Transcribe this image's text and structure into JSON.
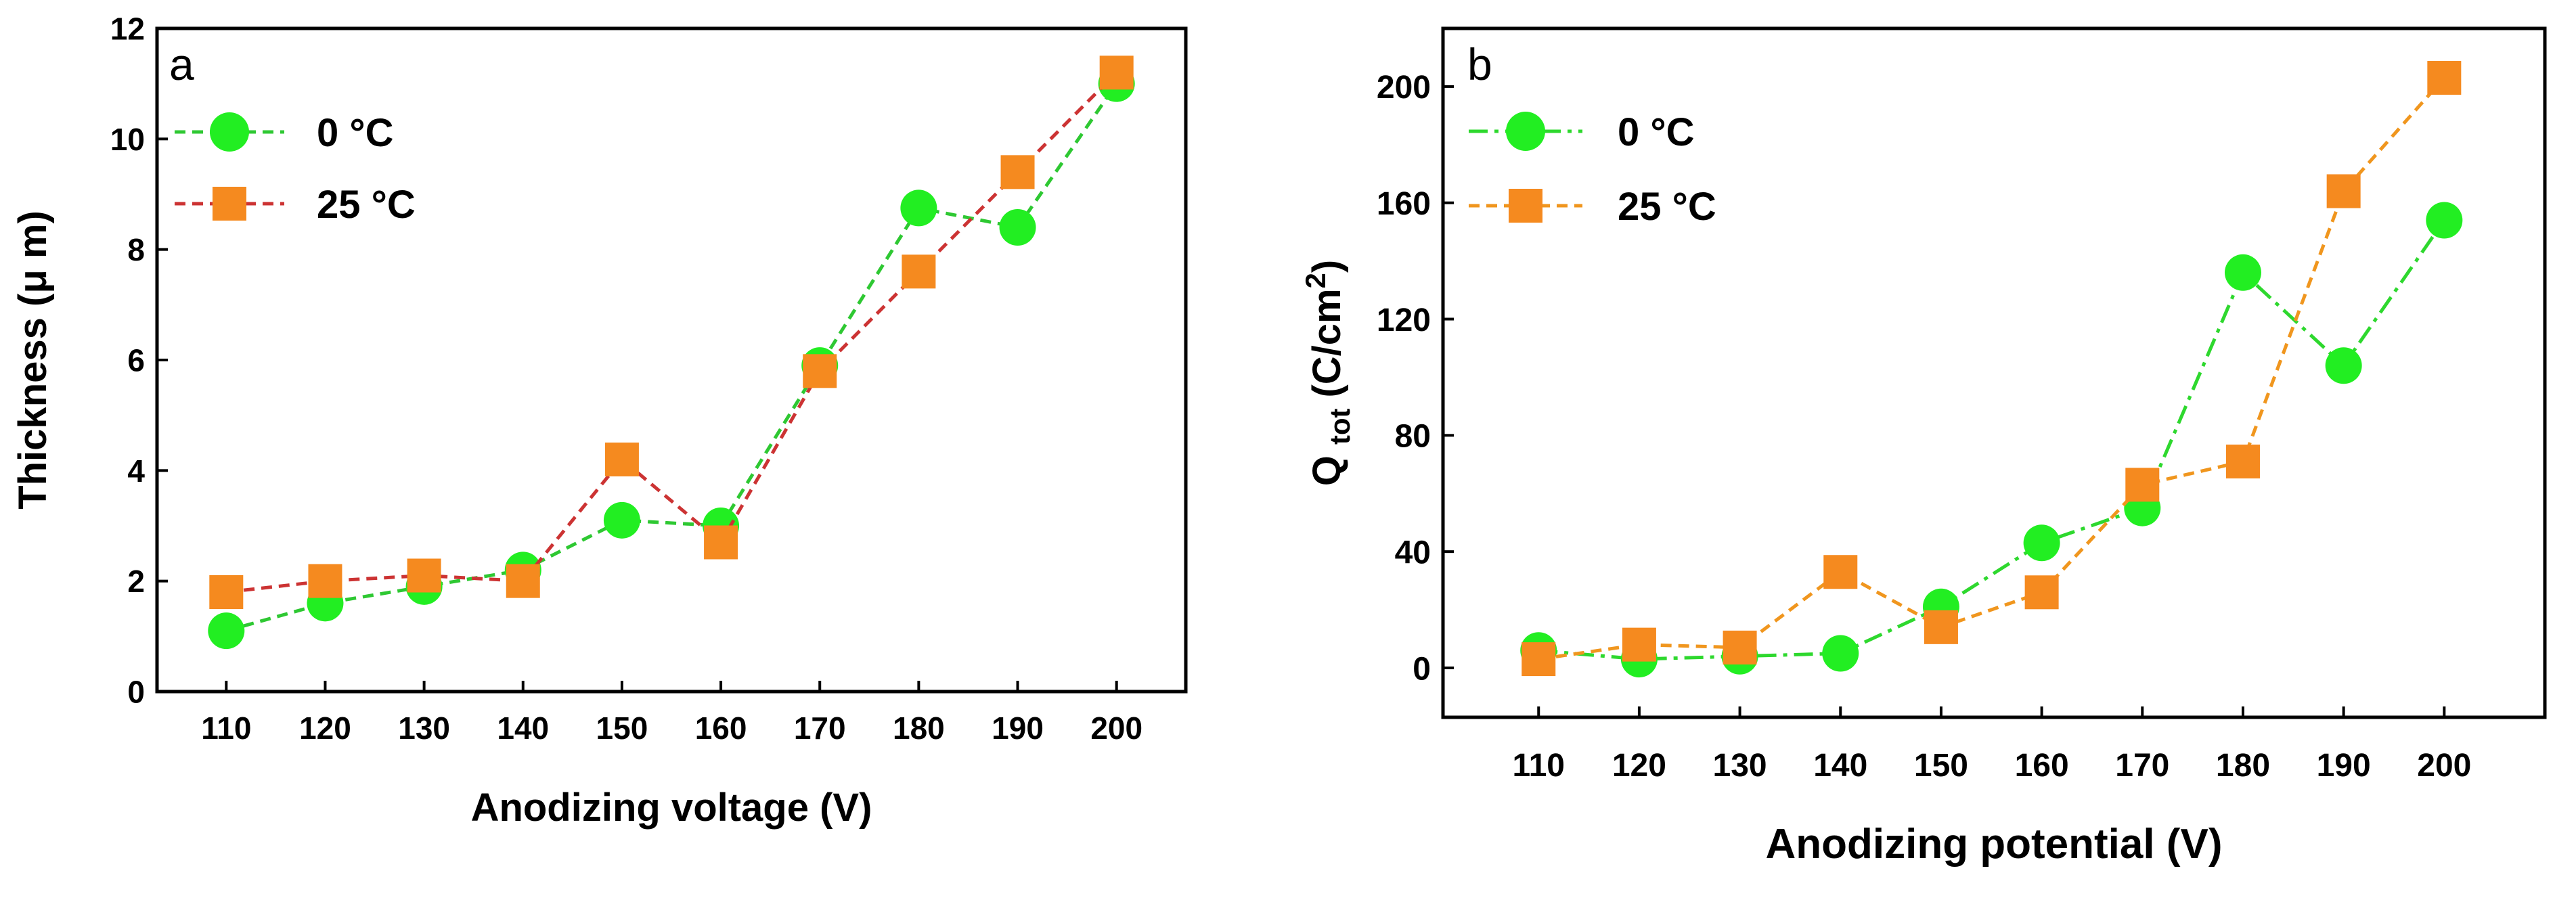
{
  "chart_data": [
    {
      "type": "line",
      "panel": "a",
      "title": "",
      "xlabel": "Anodizing voltage (V)",
      "ylabel": "Thickness (μ m)",
      "xlim": [
        103,
        207
      ],
      "ylim": [
        0,
        12
      ],
      "xticks": [
        110,
        120,
        130,
        140,
        150,
        160,
        170,
        180,
        190,
        200
      ],
      "yticks": [
        0,
        2,
        4,
        6,
        8,
        10,
        12
      ],
      "x": [
        110,
        120,
        130,
        140,
        150,
        160,
        170,
        180,
        190,
        200
      ],
      "legend_position": "top-left",
      "series": [
        {
          "name": "0 °C",
          "marker": "circle",
          "line": "dash",
          "line_color": "#2ec832",
          "marker_color": "#22ee22",
          "values": [
            1.1,
            1.6,
            1.9,
            2.2,
            3.1,
            3.0,
            5.9,
            8.75,
            8.4,
            11.0
          ]
        },
        {
          "name": "25 °C",
          "marker": "square",
          "line": "dash",
          "line_color": "#cc3333",
          "marker_color": "#f58a1f",
          "values": [
            1.8,
            2.0,
            2.1,
            2.0,
            4.2,
            2.7,
            5.8,
            7.6,
            9.4,
            11.2
          ]
        }
      ]
    },
    {
      "type": "line",
      "panel": "b",
      "title": "",
      "xlabel": "Anodizing potential (V)",
      "ylabel": "Q tot (C/cm2)",
      "ylabel_parts": {
        "main": "Q",
        "sub": "tot",
        "unit": "(C/cm",
        "sup": "2",
        "close": ")"
      },
      "xlim": [
        100.5,
        210
      ],
      "ylim": [
        -17,
        220
      ],
      "xticks": [
        110,
        120,
        130,
        140,
        150,
        160,
        170,
        180,
        190,
        200
      ],
      "yticks": [
        0,
        40,
        80,
        120,
        160,
        200
      ],
      "x": [
        110,
        120,
        130,
        140,
        150,
        160,
        170,
        180,
        190,
        200
      ],
      "legend_position": "top-left",
      "series": [
        {
          "name": "0 °C",
          "marker": "circle",
          "line": "dashdot",
          "line_color": "#2ed82e",
          "marker_color": "#22ee22",
          "values": [
            6,
            3,
            4,
            5,
            21,
            43,
            55,
            136,
            104,
            154
          ]
        },
        {
          "name": "25 °C",
          "marker": "square",
          "line": "dash",
          "line_color": "#f0961e",
          "marker_color": "#f58a1f",
          "values": [
            3,
            8,
            7,
            33,
            14,
            26,
            63,
            71,
            164,
            203
          ]
        }
      ]
    }
  ]
}
